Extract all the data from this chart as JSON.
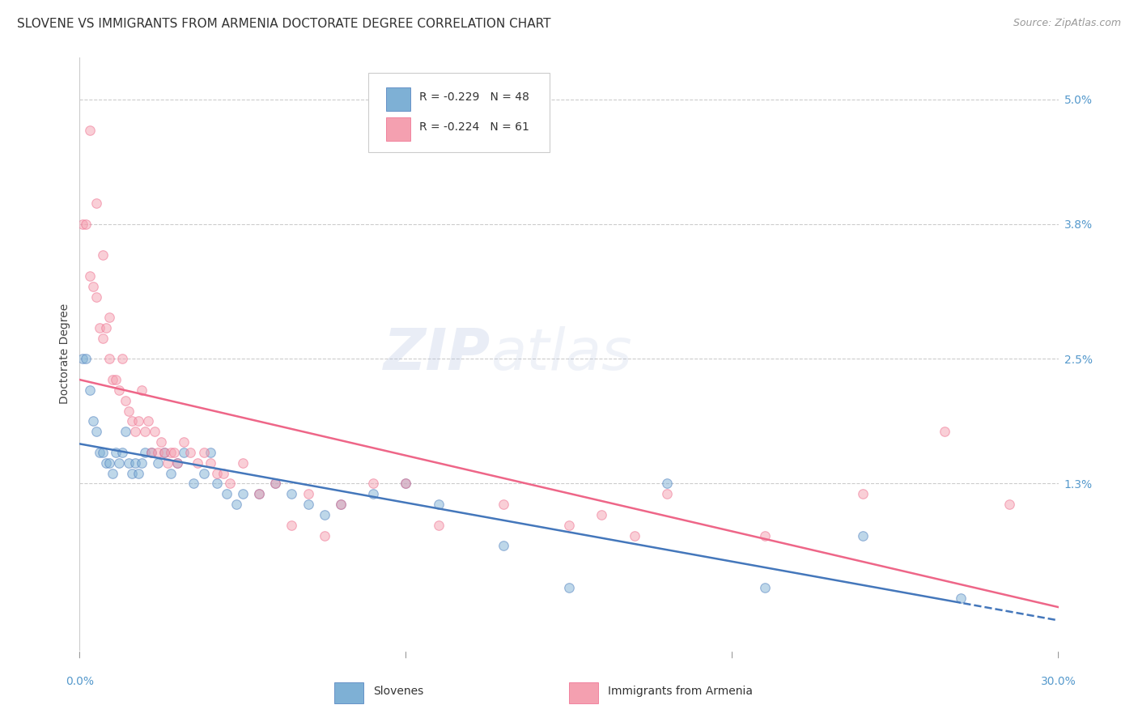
{
  "title": "SLOVENE VS IMMIGRANTS FROM ARMENIA DOCTORATE DEGREE CORRELATION CHART",
  "source": "Source: ZipAtlas.com",
  "ylabel": "Doctorate Degree",
  "xmin": 0.0,
  "xmax": 0.3,
  "ymin": -0.003,
  "ymax": 0.054,
  "legend_r1": "R = -0.229",
  "legend_n1": "N = 48",
  "legend_r2": "R = -0.224",
  "legend_n2": "N = 61",
  "blue_color": "#7EB0D5",
  "pink_color": "#F4A0B0",
  "line_blue": "#4477BB",
  "line_pink": "#EE6688",
  "blue_x": [
    0.001,
    0.002,
    0.003,
    0.004,
    0.005,
    0.006,
    0.007,
    0.008,
    0.009,
    0.01,
    0.011,
    0.012,
    0.013,
    0.014,
    0.015,
    0.016,
    0.017,
    0.018,
    0.019,
    0.02,
    0.022,
    0.024,
    0.026,
    0.028,
    0.03,
    0.032,
    0.035,
    0.038,
    0.04,
    0.042,
    0.045,
    0.048,
    0.05,
    0.055,
    0.06,
    0.065,
    0.07,
    0.075,
    0.08,
    0.09,
    0.1,
    0.11,
    0.13,
    0.15,
    0.18,
    0.21,
    0.24,
    0.27
  ],
  "blue_y": [
    0.025,
    0.025,
    0.022,
    0.019,
    0.018,
    0.016,
    0.016,
    0.015,
    0.015,
    0.014,
    0.016,
    0.015,
    0.016,
    0.018,
    0.015,
    0.014,
    0.015,
    0.014,
    0.015,
    0.016,
    0.016,
    0.015,
    0.016,
    0.014,
    0.015,
    0.016,
    0.013,
    0.014,
    0.016,
    0.013,
    0.012,
    0.011,
    0.012,
    0.012,
    0.013,
    0.012,
    0.011,
    0.01,
    0.011,
    0.012,
    0.013,
    0.011,
    0.007,
    0.003,
    0.013,
    0.003,
    0.008,
    0.002
  ],
  "pink_x": [
    0.001,
    0.002,
    0.003,
    0.004,
    0.005,
    0.006,
    0.007,
    0.008,
    0.009,
    0.01,
    0.011,
    0.012,
    0.013,
    0.014,
    0.015,
    0.016,
    0.017,
    0.018,
    0.019,
    0.02,
    0.021,
    0.022,
    0.023,
    0.024,
    0.025,
    0.026,
    0.027,
    0.028,
    0.029,
    0.03,
    0.032,
    0.034,
    0.036,
    0.038,
    0.04,
    0.042,
    0.044,
    0.046,
    0.05,
    0.055,
    0.06,
    0.065,
    0.07,
    0.075,
    0.08,
    0.09,
    0.1,
    0.11,
    0.13,
    0.15,
    0.16,
    0.17,
    0.18,
    0.21,
    0.24,
    0.265,
    0.285,
    0.003,
    0.005,
    0.007,
    0.009
  ],
  "pink_y": [
    0.038,
    0.038,
    0.033,
    0.032,
    0.031,
    0.028,
    0.027,
    0.028,
    0.025,
    0.023,
    0.023,
    0.022,
    0.025,
    0.021,
    0.02,
    0.019,
    0.018,
    0.019,
    0.022,
    0.018,
    0.019,
    0.016,
    0.018,
    0.016,
    0.017,
    0.016,
    0.015,
    0.016,
    0.016,
    0.015,
    0.017,
    0.016,
    0.015,
    0.016,
    0.015,
    0.014,
    0.014,
    0.013,
    0.015,
    0.012,
    0.013,
    0.009,
    0.012,
    0.008,
    0.011,
    0.013,
    0.013,
    0.009,
    0.011,
    0.009,
    0.01,
    0.008,
    0.012,
    0.008,
    0.012,
    0.018,
    0.011,
    0.047,
    0.04,
    0.035,
    0.029
  ],
  "watermark_zip": "ZIP",
  "watermark_atlas": "atlas",
  "grid_color": "#CCCCCC",
  "bg_color": "#FFFFFF",
  "title_fontsize": 11,
  "axis_label_color": "#5599CC",
  "marker_size": 70,
  "marker_alpha": 0.5,
  "line_width": 1.8,
  "ytick_vals": [
    0.013,
    0.025,
    0.038,
    0.05
  ],
  "ytick_labels": [
    "1.3%",
    "2.5%",
    "3.8%",
    "5.0%"
  ]
}
